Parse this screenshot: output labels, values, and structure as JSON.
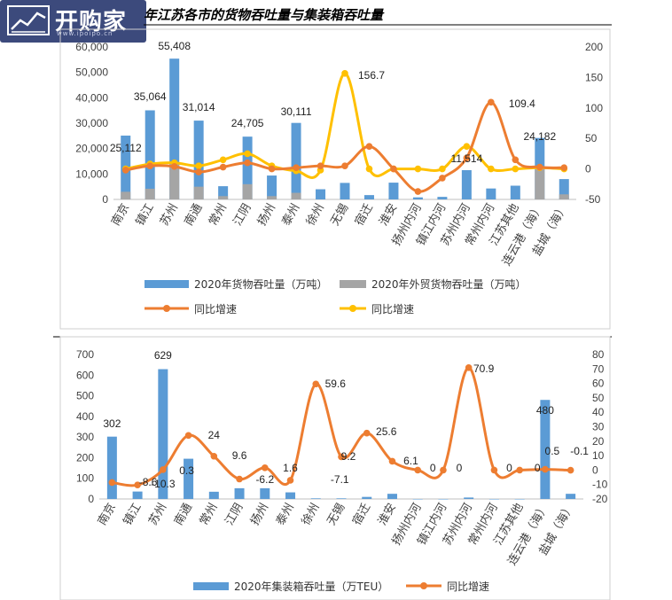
{
  "header": {
    "logo_text": "开购家",
    "logo_url": "www.ipoipo.cn",
    "title": "年江苏各市的货物吞吐量与集装箱吞吐量"
  },
  "colors": {
    "blue": "#5b9bd5",
    "gray": "#a5a5a5",
    "orange": "#ed7d31",
    "yellow": "#ffc000"
  },
  "chart_data": [
    {
      "type": "bar",
      "categories": [
        "南京",
        "镇江",
        "苏州",
        "南通",
        "常州",
        "江阴",
        "扬州",
        "泰州",
        "徐州",
        "无锡",
        "宿迁",
        "淮安",
        "扬州内河",
        "镇江内河",
        "苏州内河",
        "常州内河",
        "江苏其他",
        "连云港（海）",
        "盐城（海）"
      ],
      "y_left": {
        "ylim": [
          0,
          60000
        ],
        "ticks": [
          "0",
          "10,000",
          "20,000",
          "30,000",
          "40,000",
          "50,000",
          "60,000"
        ]
      },
      "y_right": {
        "ylim": [
          -50,
          200
        ],
        "ticks": [
          "-50",
          "0",
          "50",
          "100",
          "150",
          "200"
        ]
      },
      "series": [
        {
          "name": "2020年货物吞吐量（万吨）",
          "kind": "bar",
          "axis": "left",
          "values": [
            25112,
            35064,
            55408,
            31014,
            5200,
            24705,
            9400,
            30111,
            4000,
            6500,
            1700,
            6600,
            800,
            1000,
            11514,
            4300,
            5400,
            24182,
            8000
          ]
        },
        {
          "name": "2020年外贸货物吞吐量（万吨）",
          "kind": "bar",
          "axis": "left",
          "values": [
            3000,
            4200,
            14600,
            5000,
            1300,
            6000,
            1300,
            2600,
            0,
            0,
            0,
            0,
            0,
            0,
            0,
            0,
            0,
            12500,
            2000
          ]
        },
        {
          "name": "同比增速",
          "kind": "line",
          "axis": "right",
          "values": [
            -2,
            5,
            4,
            -5,
            3,
            10,
            0,
            2,
            5,
            5,
            37,
            0,
            -37,
            -15,
            18,
            109.4,
            15,
            3,
            2
          ]
        },
        {
          "name": "同比增速",
          "kind": "line",
          "axis": "right",
          "values": [
            0,
            8,
            10,
            5,
            15,
            25,
            5,
            -3,
            -2,
            156.7,
            0,
            0,
            0,
            0,
            37,
            0,
            0,
            2,
            0
          ]
        }
      ],
      "data_labels": [
        "25,112",
        "35,064",
        "55,408",
        "31,014",
        "24,705",
        "30,111",
        "156.7",
        "11,514",
        "109.4",
        "24,182"
      ]
    },
    {
      "type": "bar",
      "categories": [
        "南京",
        "镇江",
        "苏州",
        "南通",
        "常州",
        "江阴",
        "扬州",
        "泰州",
        "徐州",
        "无锡",
        "宿迁",
        "淮安",
        "扬州内河",
        "镇江内河",
        "苏州内河",
        "常州内河",
        "江苏其他",
        "连云港（海）",
        "盐城（海）"
      ],
      "y_left": {
        "ylim": [
          0,
          700
        ],
        "ticks": [
          "0",
          "100",
          "200",
          "300",
          "400",
          "500",
          "600",
          "700"
        ]
      },
      "y_right": {
        "ylim": [
          -20,
          80
        ],
        "ticks": [
          "-20",
          "-10",
          "0",
          "10",
          "20",
          "30",
          "40",
          "50",
          "60",
          "70",
          "80"
        ]
      },
      "series": [
        {
          "name": "2020年集装箱吞吐量（万TEU）",
          "kind": "bar",
          "axis": "left",
          "values": [
            302,
            36,
            629,
            195,
            35,
            52,
            52,
            32,
            3,
            3,
            10,
            25,
            0,
            0,
            7,
            0,
            0,
            480,
            25
          ]
        },
        {
          "name": "同比增速",
          "kind": "line",
          "axis": "right",
          "values": [
            -8.6,
            -10.3,
            0.3,
            24,
            9.6,
            -6.2,
            1.6,
            -7.1,
            59.6,
            9.2,
            25.6,
            6.1,
            0,
            0,
            70.9,
            0,
            0,
            0.5,
            -0.1
          ]
        }
      ],
      "data_labels": [
        "302",
        "-8.6",
        "-10.3",
        "629",
        "0.3",
        "24",
        "9.6",
        "-6.2",
        "1.6",
        "-7.1",
        "59.6",
        "9.2",
        "25.6",
        "6.1",
        "0",
        "0",
        "70.9",
        "0",
        "0",
        "480",
        "0.5",
        "-0.1"
      ]
    }
  ]
}
